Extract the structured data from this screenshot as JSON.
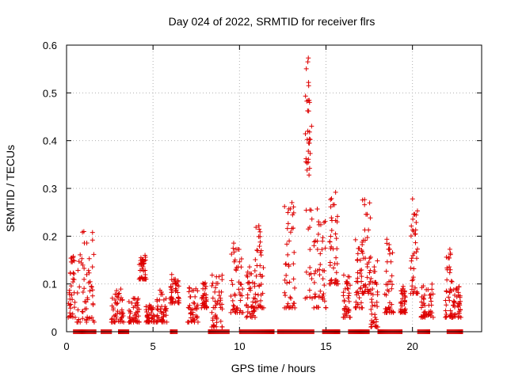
{
  "chart_data": {
    "type": "scatter",
    "title": "Day 024 of 2022, SRMTID for receiver flrs",
    "xlabel": "GPS time / hours",
    "ylabel": "SRMTID / TECUs",
    "xlim": [
      0,
      24
    ],
    "ylim": [
      0,
      0.6
    ],
    "x_ticks": [
      0,
      5,
      10,
      15,
      20
    ],
    "y_ticks": [
      0,
      0.1,
      0.2,
      0.3,
      0.4,
      0.5,
      0.6
    ],
    "x_tick_labels": [
      "0",
      "5",
      "10",
      "15",
      "20"
    ],
    "y_tick_labels": [
      "0",
      "0.1",
      "0.2",
      "0.3",
      "0.4",
      "0.5",
      "0.6"
    ],
    "grid": true,
    "marker": "+",
    "color": "#dd0000",
    "clusters": [
      {
        "x": [
          0.1,
          0.5
        ],
        "y": [
          0.03,
          0.17
        ]
      },
      {
        "x": [
          0.6,
          1.6
        ],
        "y": [
          0.02,
          0.22
        ]
      },
      {
        "x": [
          2.6,
          3.3
        ],
        "y": [
          0.02,
          0.09
        ]
      },
      {
        "x": [
          3.6,
          4.2
        ],
        "y": [
          0.02,
          0.08
        ]
      },
      {
        "x": [
          4.2,
          4.6
        ],
        "y": [
          0.11,
          0.16
        ]
      },
      {
        "x": [
          4.6,
          5.1
        ],
        "y": [
          0.02,
          0.06
        ]
      },
      {
        "x": [
          5.2,
          5.8
        ],
        "y": [
          0.02,
          0.09
        ]
      },
      {
        "x": [
          6.0,
          6.5
        ],
        "y": [
          0.06,
          0.12
        ]
      },
      {
        "x": [
          7.0,
          7.6
        ],
        "y": [
          0.02,
          0.1
        ]
      },
      {
        "x": [
          7.8,
          8.1
        ],
        "y": [
          0.05,
          0.11
        ]
      },
      {
        "x": [
          8.4,
          9.0
        ],
        "y": [
          0.01,
          0.12
        ]
      },
      {
        "x": [
          9.5,
          10.2
        ],
        "y": [
          0.04,
          0.2
        ]
      },
      {
        "x": [
          10.4,
          10.9
        ],
        "y": [
          0.03,
          0.14
        ]
      },
      {
        "x": [
          10.9,
          11.4
        ],
        "y": [
          0.05,
          0.23
        ]
      },
      {
        "x": [
          12.6,
          13.2
        ],
        "y": [
          0.05,
          0.3
        ]
      },
      {
        "x": [
          13.8,
          14.2
        ],
        "y": [
          0.07,
          0.57
        ]
      },
      {
        "x": [
          14.3,
          15.0
        ],
        "y": [
          0.05,
          0.26
        ]
      },
      {
        "x": [
          15.2,
          15.7
        ],
        "y": [
          0.1,
          0.3
        ]
      },
      {
        "x": [
          16.0,
          16.4
        ],
        "y": [
          0.03,
          0.12
        ]
      },
      {
        "x": [
          16.7,
          17.1
        ],
        "y": [
          0.05,
          0.2
        ]
      },
      {
        "x": [
          17.1,
          17.6
        ],
        "y": [
          0.08,
          0.28
        ]
      },
      {
        "x": [
          17.6,
          18.0
        ],
        "y": [
          0.01,
          0.15
        ]
      },
      {
        "x": [
          18.4,
          18.9
        ],
        "y": [
          0.04,
          0.2
        ]
      },
      {
        "x": [
          19.3,
          19.6
        ],
        "y": [
          0.04,
          0.1
        ]
      },
      {
        "x": [
          19.9,
          20.3
        ],
        "y": [
          0.08,
          0.28
        ]
      },
      {
        "x": [
          20.5,
          21.2
        ],
        "y": [
          0.03,
          0.1
        ]
      },
      {
        "x": [
          21.9,
          22.3
        ],
        "y": [
          0.03,
          0.18
        ]
      },
      {
        "x": [
          22.3,
          22.8
        ],
        "y": [
          0.03,
          0.1
        ]
      }
    ],
    "zero_segments": [
      [
        0.4,
        1.7
      ],
      [
        2.0,
        2.6
      ],
      [
        3.0,
        3.6
      ],
      [
        6.0,
        6.4
      ],
      [
        8.2,
        9.4
      ],
      [
        10.0,
        12.0
      ],
      [
        12.2,
        14.3
      ],
      [
        14.8,
        15.8
      ],
      [
        16.3,
        17.5
      ],
      [
        18.0,
        19.4
      ],
      [
        20.3,
        21.0
      ],
      [
        22.0,
        22.9
      ]
    ],
    "peak_points": [
      {
        "x": 13.98,
        "y": 0.573
      },
      {
        "x": 13.95,
        "y": 0.565
      },
      {
        "x": 14.0,
        "y": 0.515
      },
      {
        "x": 14.05,
        "y": 0.48
      },
      {
        "x": 14.0,
        "y": 0.462
      },
      {
        "x": 13.95,
        "y": 0.42
      },
      {
        "x": 14.05,
        "y": 0.418
      },
      {
        "x": 14.0,
        "y": 0.395
      },
      {
        "x": 13.98,
        "y": 0.378
      },
      {
        "x": 14.02,
        "y": 0.328
      }
    ]
  }
}
